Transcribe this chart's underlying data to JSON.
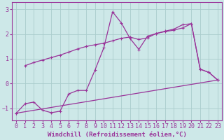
{
  "xlabel": "Windchill (Refroidissement éolien,°C)",
  "background_color": "#cde8e8",
  "line_color": "#993399",
  "grid_color": "#aacccc",
  "xlim": [
    -0.5,
    23.5
  ],
  "ylim": [
    -1.5,
    3.3
  ],
  "yticks": [
    -1,
    0,
    1,
    2,
    3
  ],
  "xticks": [
    0,
    1,
    2,
    3,
    4,
    5,
    6,
    7,
    8,
    9,
    10,
    11,
    12,
    13,
    14,
    15,
    16,
    17,
    18,
    19,
    20,
    21,
    22,
    23
  ],
  "line1_x": [
    1,
    2,
    3,
    4,
    5,
    6,
    7,
    8,
    9,
    10,
    11,
    12,
    13,
    14,
    15,
    16,
    17,
    18,
    19,
    20,
    21,
    22,
    23
  ],
  "line1_y": [
    0.72,
    0.85,
    0.95,
    1.05,
    1.15,
    1.27,
    1.4,
    1.5,
    1.57,
    1.63,
    1.73,
    1.83,
    1.88,
    1.78,
    1.85,
    2.03,
    2.1,
    2.16,
    2.25,
    2.42,
    0.58,
    0.45,
    0.14
  ],
  "line2_x": [
    0,
    1,
    2,
    3,
    4,
    5,
    6,
    7,
    8,
    9,
    10,
    11,
    12,
    13,
    14,
    15,
    16,
    17,
    18,
    19,
    20,
    21,
    22,
    23
  ],
  "line2_y": [
    -1.2,
    -0.82,
    -0.75,
    -1.08,
    -1.18,
    -1.12,
    -0.42,
    -0.28,
    -0.28,
    0.55,
    1.45,
    2.9,
    2.45,
    1.82,
    1.38,
    1.92,
    2.02,
    2.12,
    2.2,
    2.38,
    2.42,
    0.58,
    0.45,
    0.14
  ],
  "line3_x": [
    0,
    23
  ],
  "line3_y": [
    -1.2,
    0.14
  ],
  "fontsize_xlabel": 6.5,
  "fontsize_tick": 6
}
